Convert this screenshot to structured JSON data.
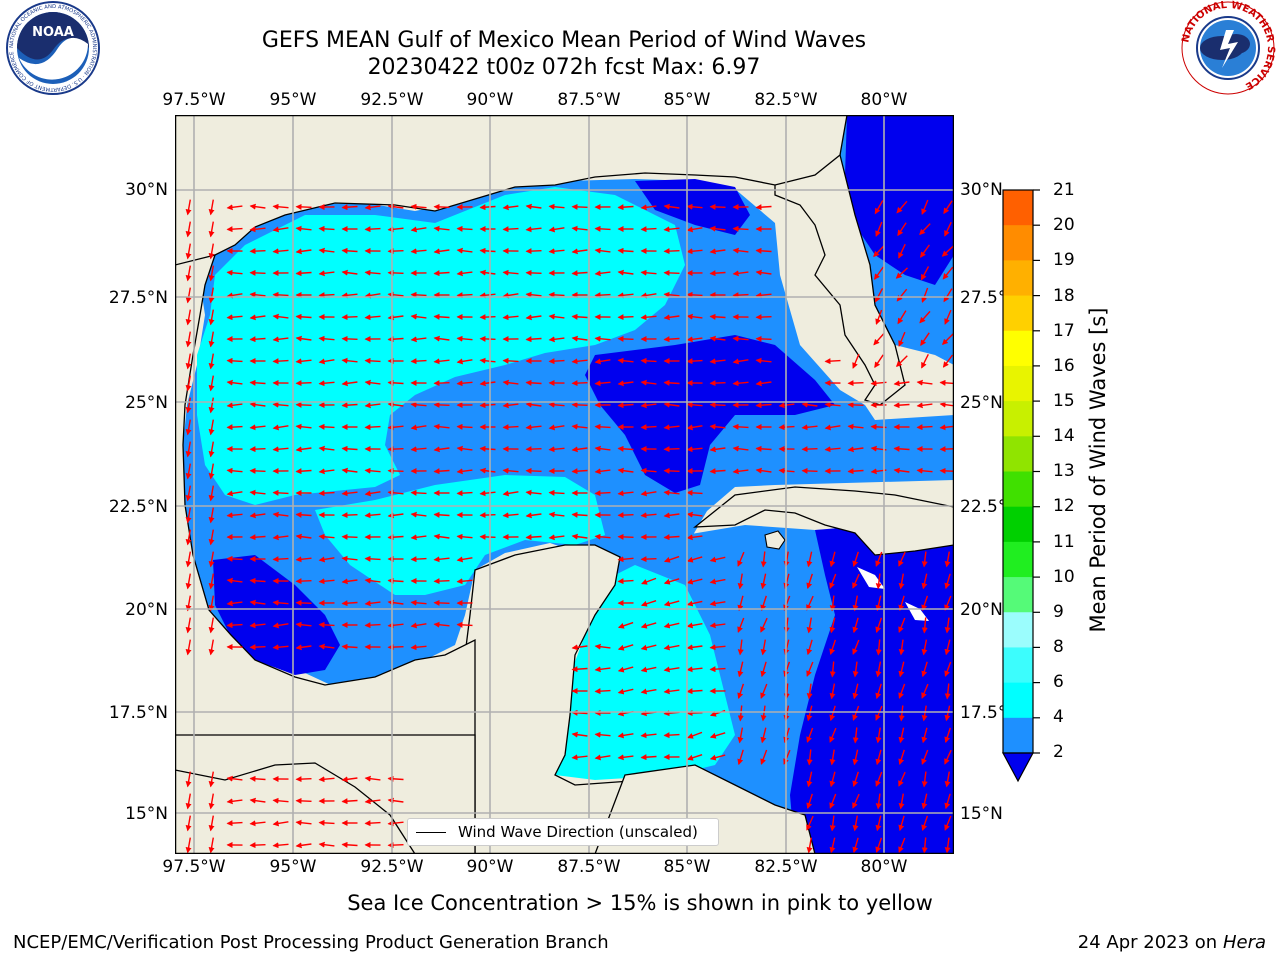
{
  "header": {
    "title_line1": "GEFS MEAN Gulf of Mexico Mean Period of Wind Waves",
    "title_line2": "20230422 t00z 072h fcst   Max: 6.97"
  },
  "logos": {
    "noaa_text": "NOAA",
    "noaa_ring": "NATIONAL OCEANIC AND ATMOSPHERIC ADMINISTRATION · U.S. DEPARTMENT OF COMMERCE",
    "nws_ring": "NATIONAL WEATHER SERVICE"
  },
  "map": {
    "lon_labels": [
      "97.5°W",
      "95°W",
      "92.5°W",
      "90°W",
      "87.5°W",
      "85°W",
      "82.5°W",
      "80°W"
    ],
    "lat_labels_left": [
      "30°N",
      "27.5°N",
      "25°N",
      "22.5°N",
      "20°N",
      "17.5°N",
      "15°N"
    ],
    "lat_labels_right": [
      "30°N",
      "27.5°N",
      "25°N",
      "22.5°N",
      "20°N",
      "17.5°N",
      "15°N"
    ],
    "legend_label": "Wind Wave Direction (unscaled)",
    "colors": {
      "land": "#efedde",
      "level_2_4": "#1e90ff",
      "level_0_2": "#0000ee",
      "level_4_6": "#00ffff",
      "level_6_8": "#3cfdfd",
      "arrow": "#ff0000",
      "grid": "#b0b0b0"
    }
  },
  "colorbar": {
    "label": "Mean Period of Wind Waves [s]",
    "ticks": [
      "21",
      "20",
      "19",
      "18",
      "17",
      "16",
      "15",
      "14",
      "13",
      "12",
      "11",
      "10",
      "9",
      "8",
      "6",
      "4",
      "2"
    ],
    "colors_bottom_to_top": [
      "#1e90ff",
      "#00ffff",
      "#3cfdfd",
      "#9bfdfd",
      "#55fa78",
      "#20ee20",
      "#00d000",
      "#40e000",
      "#90e400",
      "#c8f000",
      "#e8f400",
      "#ffff00",
      "#ffd000",
      "#ffb000",
      "#ff8c00",
      "#ff6000",
      "#ff3000",
      "#ff0000"
    ],
    "underflow_color": "#0000ee"
  },
  "caption": "Sea Ice Concentration > 15% is shown in pink to yellow",
  "footer": {
    "left": "NCEP/EMC/Verification Post Processing Product Generation Branch",
    "date": "24 Apr 2023 on ",
    "host": "Hera"
  }
}
